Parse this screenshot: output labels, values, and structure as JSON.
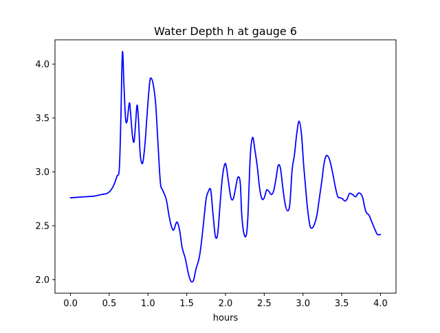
{
  "chart_data": {
    "type": "line",
    "title": "Water Depth h at gauge 6",
    "xlabel": "hours",
    "ylabel": "",
    "xlim": [
      -0.2,
      4.2
    ],
    "ylim": [
      1.875,
      4.225
    ],
    "xticks": [
      0.0,
      0.5,
      1.0,
      1.5,
      2.0,
      2.5,
      3.0,
      3.5,
      4.0
    ],
    "xtick_labels": [
      "0.0",
      "0.5",
      "1.0",
      "1.5",
      "2.0",
      "2.5",
      "3.0",
      "3.5",
      "4.0"
    ],
    "yticks": [
      2.0,
      2.5,
      3.0,
      3.5,
      4.0
    ],
    "ytick_labels": [
      "2.0",
      "2.5",
      "3.0",
      "3.5",
      "4.0"
    ],
    "grid": false,
    "legend": "none",
    "series": [
      {
        "color": "#0000ff",
        "x": [
          0.0,
          0.2,
          0.3,
          0.4,
          0.47,
          0.52,
          0.56,
          0.6,
          0.63,
          0.65,
          0.67,
          0.69,
          0.71,
          0.73,
          0.76,
          0.78,
          0.8,
          0.82,
          0.84,
          0.86,
          0.88,
          0.9,
          0.93,
          0.96,
          0.99,
          1.02,
          1.04,
          1.07,
          1.1,
          1.13,
          1.16,
          1.19,
          1.22,
          1.24,
          1.27,
          1.3,
          1.33,
          1.36,
          1.38,
          1.41,
          1.44,
          1.48,
          1.52,
          1.55,
          1.57,
          1.59,
          1.62,
          1.66,
          1.69,
          1.72,
          1.75,
          1.78,
          1.81,
          1.84,
          1.87,
          1.9,
          1.93,
          1.96,
          1.99,
          2.01,
          2.04,
          2.07,
          2.1,
          2.13,
          2.16,
          2.19,
          2.21,
          2.24,
          2.27,
          2.29,
          2.32,
          2.35,
          2.38,
          2.41,
          2.44,
          2.47,
          2.5,
          2.53,
          2.56,
          2.59,
          2.62,
          2.65,
          2.68,
          2.71,
          2.74,
          2.77,
          2.8,
          2.83,
          2.86,
          2.89,
          2.92,
          2.95,
          2.98,
          3.01,
          3.04,
          3.06,
          3.09,
          3.12,
          3.15,
          3.18,
          3.21,
          3.24,
          3.27,
          3.3,
          3.34,
          3.38,
          3.42,
          3.45,
          3.48,
          3.51,
          3.54,
          3.57,
          3.6,
          3.64,
          3.68,
          3.71,
          3.74,
          3.77,
          3.8,
          3.82,
          3.85,
          3.88,
          3.92,
          3.96,
          4.0
        ],
        "y": [
          2.76,
          2.77,
          2.775,
          2.79,
          2.8,
          2.83,
          2.88,
          2.96,
          3.03,
          3.5,
          4.11,
          3.8,
          3.5,
          3.47,
          3.64,
          3.5,
          3.33,
          3.28,
          3.45,
          3.62,
          3.45,
          3.16,
          3.08,
          3.25,
          3.55,
          3.82,
          3.87,
          3.8,
          3.62,
          3.25,
          2.9,
          2.83,
          2.78,
          2.73,
          2.6,
          2.5,
          2.46,
          2.52,
          2.53,
          2.45,
          2.3,
          2.2,
          2.06,
          1.99,
          1.98,
          2.0,
          2.1,
          2.2,
          2.35,
          2.55,
          2.75,
          2.82,
          2.83,
          2.6,
          2.4,
          2.43,
          2.7,
          2.95,
          3.07,
          3.05,
          2.9,
          2.76,
          2.75,
          2.85,
          2.95,
          2.9,
          2.6,
          2.42,
          2.42,
          2.6,
          3.15,
          3.32,
          3.2,
          3.05,
          2.85,
          2.75,
          2.76,
          2.83,
          2.82,
          2.79,
          2.82,
          2.93,
          3.06,
          3.03,
          2.85,
          2.7,
          2.64,
          2.7,
          3.02,
          3.16,
          3.36,
          3.47,
          3.35,
          3.05,
          2.8,
          2.65,
          2.5,
          2.48,
          2.52,
          2.6,
          2.75,
          2.9,
          3.07,
          3.15,
          3.12,
          3.0,
          2.85,
          2.77,
          2.76,
          2.75,
          2.73,
          2.75,
          2.8,
          2.79,
          2.77,
          2.8,
          2.8,
          2.76,
          2.66,
          2.62,
          2.6,
          2.55,
          2.48,
          2.42,
          2.42
        ]
      }
    ]
  }
}
